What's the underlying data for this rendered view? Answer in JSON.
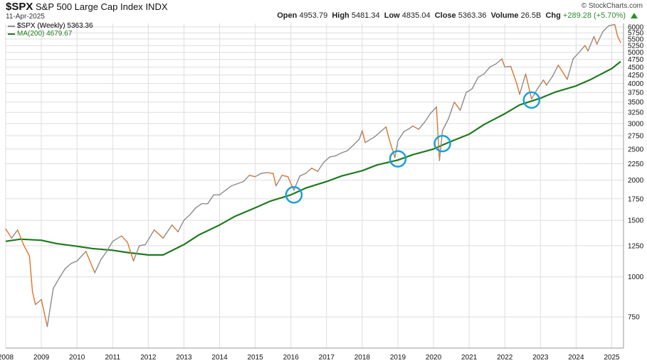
{
  "header": {
    "symbol": "$SPX",
    "name": "S&P 500 Large Cap Index",
    "exchange": "INDX",
    "date": "11-Apr-2025",
    "brand": "© StockCharts.com",
    "quote": {
      "open_label": "Open",
      "open": "4953.79",
      "high_label": "High",
      "high": "5481.34",
      "low_label": "Low",
      "low": "4835.04",
      "close_label": "Close",
      "close": "5363.36",
      "volume_label": "Volume",
      "volume": "26.5B",
      "chg_label": "Chg",
      "chg": "+289.28 (+5.70%)"
    }
  },
  "legend": {
    "price_label": "$SPX (Weekly) 5363.36",
    "ma_label": "MA(200) 4679.67"
  },
  "colors": {
    "price_up": "#8c8c8c",
    "price_down": "#e0742a",
    "ma": "#1f7a1f",
    "circle": "#1aa0d8",
    "grid": "#dedede",
    "up_arrow": "#2e8b2e"
  },
  "chart_data": {
    "type": "line",
    "xlabel": "",
    "ylabel": "",
    "x_ticks": [
      "2008",
      "2009",
      "2010",
      "2011",
      "2012",
      "2013",
      "2014",
      "2015",
      "2016",
      "2017",
      "2018",
      "2019",
      "2020",
      "2021",
      "2022",
      "2023",
      "2024",
      "2025"
    ],
    "y_ticks": [
      750,
      1000,
      1250,
      1500,
      1750,
      2000,
      2250,
      2500,
      2750,
      3000,
      3250,
      3500,
      3750,
      4000,
      4250,
      4500,
      4750,
      5000,
      5250,
      5500,
      5750,
      6000
    ],
    "xlim": [
      "2008-01-01",
      "2025-04-30"
    ],
    "ylim": [
      600,
      6150
    ],
    "y_scale": "log",
    "grid": true,
    "legend_position": "top-left",
    "series": [
      {
        "name": "$SPX (Weekly)",
        "x": [
          "2008-01",
          "2008-03",
          "2008-05",
          "2008-07",
          "2008-09",
          "2008-10",
          "2008-11",
          "2009-01",
          "2009-03",
          "2009-05",
          "2009-07",
          "2009-09",
          "2009-11",
          "2010-01",
          "2010-04",
          "2010-07",
          "2010-09",
          "2010-11",
          "2011-01",
          "2011-04",
          "2011-06",
          "2011-08",
          "2011-10",
          "2011-12",
          "2012-03",
          "2012-06",
          "2012-09",
          "2012-11",
          "2013-01",
          "2013-03",
          "2013-05",
          "2013-07",
          "2013-09",
          "2013-11",
          "2014-01",
          "2014-03",
          "2014-05",
          "2014-07",
          "2014-09",
          "2014-11",
          "2015-01",
          "2015-03",
          "2015-05",
          "2015-07",
          "2015-08",
          "2015-10",
          "2015-12",
          "2016-02",
          "2016-04",
          "2016-06",
          "2016-08",
          "2016-10",
          "2016-12",
          "2017-02",
          "2017-04",
          "2017-06",
          "2017-08",
          "2017-10",
          "2017-12",
          "2018-01",
          "2018-02",
          "2018-05",
          "2018-07",
          "2018-09",
          "2018-10",
          "2018-12",
          "2019-01",
          "2019-03",
          "2019-05",
          "2019-06",
          "2019-08",
          "2019-10",
          "2019-12",
          "2020-02",
          "2020-03",
          "2020-04",
          "2020-06",
          "2020-08",
          "2020-10",
          "2020-12",
          "2021-02",
          "2021-04",
          "2021-06",
          "2021-08",
          "2021-10",
          "2021-12",
          "2022-01",
          "2022-03",
          "2022-05",
          "2022-06",
          "2022-08",
          "2022-10",
          "2022-12",
          "2023-02",
          "2023-03",
          "2023-05",
          "2023-07",
          "2023-10",
          "2023-12",
          "2024-02",
          "2024-04",
          "2024-05",
          "2024-07",
          "2024-08",
          "2024-10",
          "2024-12",
          "2025-02",
          "2025-03",
          "2025-04"
        ],
        "values": [
          1410,
          1320,
          1400,
          1260,
          1160,
          900,
          820,
          850,
          700,
          920,
          990,
          1060,
          1100,
          1120,
          1200,
          1030,
          1130,
          1200,
          1290,
          1340,
          1280,
          1120,
          1250,
          1260,
          1400,
          1320,
          1450,
          1380,
          1500,
          1560,
          1640,
          1690,
          1690,
          1800,
          1800,
          1860,
          1920,
          1950,
          1980,
          2070,
          2050,
          2100,
          2110,
          2100,
          1920,
          2070,
          2050,
          1860,
          2060,
          2100,
          2180,
          2130,
          2270,
          2360,
          2380,
          2430,
          2470,
          2570,
          2680,
          2850,
          2620,
          2720,
          2820,
          2930,
          2700,
          2350,
          2650,
          2830,
          2900,
          2950,
          2880,
          3030,
          3230,
          3380,
          2300,
          2850,
          3100,
          3500,
          3300,
          3750,
          3850,
          4180,
          4280,
          4500,
          4600,
          4770,
          4500,
          4520,
          4000,
          3700,
          4280,
          3580,
          3850,
          4100,
          3950,
          4200,
          4560,
          4120,
          4770,
          5000,
          5250,
          5050,
          5600,
          5300,
          5800,
          6050,
          6100,
          5600,
          5363
        ]
      },
      {
        "name": "MA(200)",
        "x": [
          "2008-01",
          "2008-06",
          "2009-01",
          "2009-06",
          "2010-01",
          "2010-06",
          "2011-01",
          "2011-06",
          "2012-01",
          "2012-06",
          "2013-01",
          "2013-06",
          "2014-01",
          "2014-06",
          "2015-01",
          "2015-06",
          "2016-01",
          "2016-06",
          "2017-01",
          "2017-06",
          "2018-01",
          "2018-06",
          "2019-01",
          "2019-06",
          "2020-01",
          "2020-06",
          "2021-01",
          "2021-06",
          "2022-01",
          "2022-06",
          "2023-01",
          "2023-06",
          "2024-01",
          "2024-06",
          "2025-01",
          "2025-04"
        ],
        "values": [
          1290,
          1310,
          1300,
          1270,
          1245,
          1225,
          1210,
          1190,
          1170,
          1170,
          1260,
          1350,
          1450,
          1540,
          1640,
          1720,
          1800,
          1890,
          1980,
          2060,
          2140,
          2230,
          2310,
          2400,
          2500,
          2620,
          2780,
          2980,
          3220,
          3430,
          3600,
          3760,
          3930,
          4120,
          4450,
          4680
        ]
      }
    ],
    "annotations": [
      {
        "type": "circle",
        "x": "2016-02",
        "y": 1800
      },
      {
        "type": "circle",
        "x": "2019-01",
        "y": 2330
      },
      {
        "type": "circle",
        "x": "2020-04",
        "y": 2600
      },
      {
        "type": "circle",
        "x": "2022-10",
        "y": 3550
      }
    ]
  }
}
